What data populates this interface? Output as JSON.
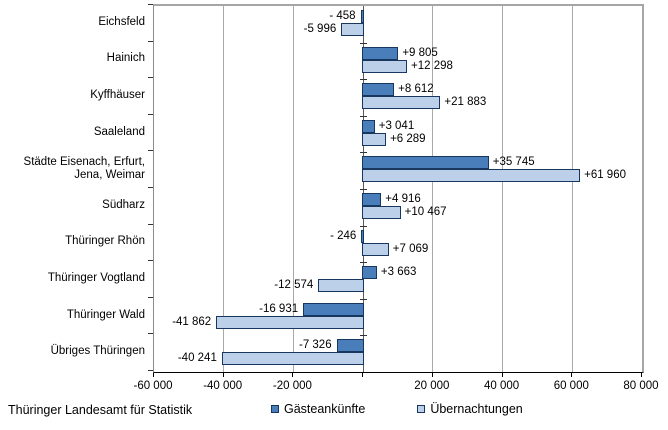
{
  "chart_data": {
    "type": "bar",
    "orientation": "horizontal",
    "title": "",
    "categories": [
      "Eichsfeld",
      "Hainich",
      "Kyffhäuser",
      "Saaleland",
      "Städte Eisenach, Erfurt, Jena, Weimar",
      "Südharz",
      "Thüringer Rhön",
      "Thüringer Vogtland",
      "Thüringer Wald",
      "Übriges Thüringen"
    ],
    "series": [
      {
        "name": "Gästeankünfte",
        "color": "#4a7ebb",
        "border_color": "#17375e",
        "values": [
          -458,
          9805,
          8612,
          3041,
          35745,
          4916,
          -246,
          3663,
          -16931,
          -7326
        ],
        "labels": [
          "- 458",
          "+9 805",
          "+8 612",
          "+3 041",
          "+35 745",
          "+4 916",
          "- 246",
          "+3 663",
          "-16 931",
          "-7 326"
        ]
      },
      {
        "name": "Übernachtungen",
        "color": "#bdd0e9",
        "border_color": "#17375e",
        "values": [
          -5996,
          12298,
          21883,
          6289,
          61960,
          10467,
          7069,
          -12574,
          -41862,
          -40241
        ],
        "labels": [
          "-5 996",
          "+12 298",
          "+21 883",
          "+6 289",
          "+61 960",
          "+10 467",
          "+7 069",
          "-12 574",
          "-41 862",
          "-40 241"
        ]
      }
    ],
    "xlim": [
      -60000,
      80000
    ],
    "x_ticks": [
      -60000,
      -40000,
      -20000,
      0,
      20000,
      40000,
      60000,
      80000
    ],
    "x_tick_labels": [
      "-60 000",
      "-40 000",
      "-20 000",
      "",
      "20 000",
      "40 000",
      "60 000",
      "80 000"
    ],
    "gridline_values": [
      -40000,
      -20000,
      20000,
      40000,
      60000
    ],
    "grid": true,
    "legend_position": "bottom"
  },
  "footer": {
    "source": "Thüringer Landesamt für Statistik"
  }
}
